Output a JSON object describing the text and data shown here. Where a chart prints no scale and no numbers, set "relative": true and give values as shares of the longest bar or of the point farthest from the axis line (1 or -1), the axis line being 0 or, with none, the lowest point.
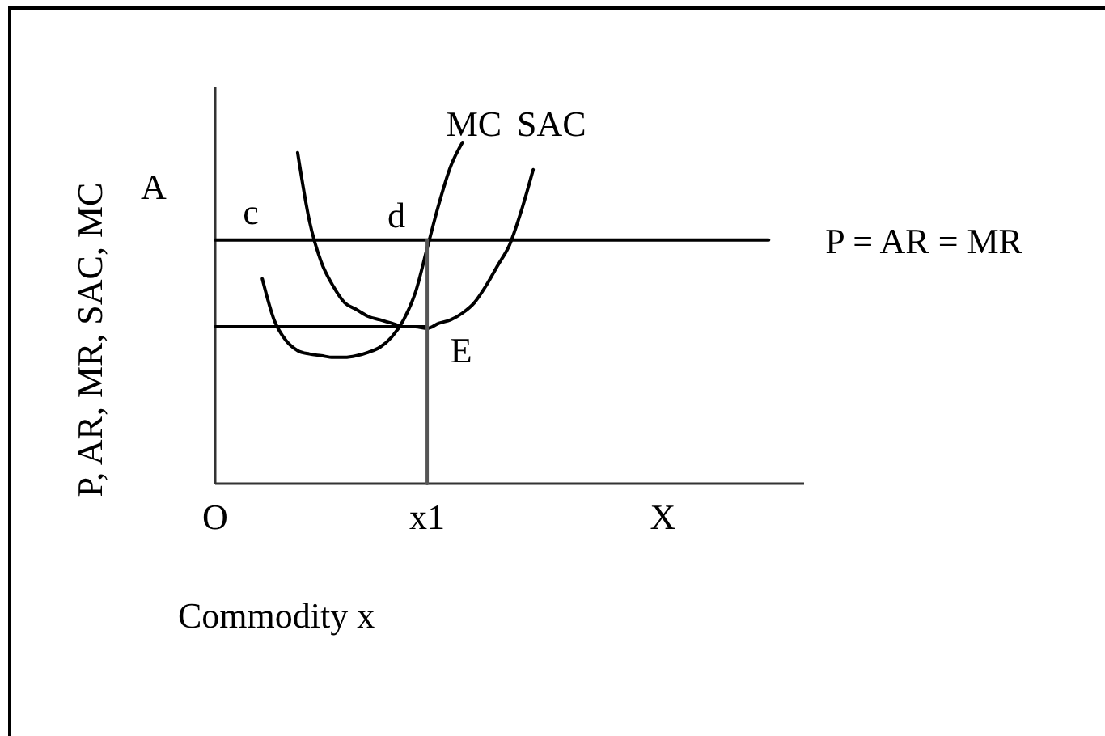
{
  "chart_data": {
    "type": "line",
    "relative": true,
    "xlabel": "Commodity x",
    "ylabel": "P, AR, MR, SAC, MC",
    "categories": [
      "O",
      null,
      null,
      null,
      null,
      null,
      null,
      null,
      null,
      null,
      null,
      null,
      null,
      null,
      null,
      null,
      null,
      null,
      "x1",
      null,
      null,
      null,
      null,
      null,
      null,
      null,
      null,
      null,
      null,
      null,
      null,
      null,
      null,
      null,
      null,
      null,
      null,
      null,
      "X",
      null,
      null,
      null,
      null,
      null,
      null,
      null,
      null,
      null,
      null,
      null,
      null
    ],
    "annotations": [
      "A",
      {
        "text": "c",
        "y": 0.714
      },
      {
        "text": "d",
        "x": "x1",
        "y": 0.714
      },
      {
        "text": "E",
        "x": "x1",
        "y": 0.455
      }
    ],
    "series": [
      {
        "name": "MC",
        "color": "#000000",
        "values": [
          null,
          null,
          null,
          null,
          0.6,
          0.48,
          0.42,
          0.39,
          0.38,
          0.375,
          0.37,
          0.37,
          0.375,
          0.385,
          0.4,
          0.43,
          0.48,
          0.56,
          0.69,
          0.82,
          0.93,
          1,
          null,
          null,
          null,
          null,
          null,
          null,
          null,
          null,
          null,
          null,
          null,
          null,
          null,
          null,
          null,
          null,
          null,
          null,
          null,
          null,
          null,
          null,
          null,
          null,
          null,
          null,
          null,
          null,
          null
        ]
      },
      {
        "name": "SAC",
        "color": "#000000",
        "values": [
          null,
          null,
          null,
          null,
          null,
          null,
          null,
          0.97,
          0.77,
          0.65,
          0.58,
          0.53,
          0.51,
          0.49,
          0.48,
          0.47,
          0.46,
          0.46,
          0.455,
          0.47,
          0.48,
          0.5,
          0.53,
          0.58,
          0.64,
          0.7,
          0.8,
          0.92,
          null,
          null,
          null,
          null,
          null,
          null,
          null,
          null,
          null,
          null,
          null,
          null,
          null,
          null,
          null,
          null,
          null,
          null,
          null,
          null,
          null,
          null,
          null
        ]
      },
      {
        "name": "P = AR = MR",
        "color": "#000000",
        "values": [
          0.714,
          0.714,
          0.714,
          0.714,
          0.714,
          0.714,
          0.714,
          0.714,
          0.714,
          0.714,
          0.714,
          0.714,
          0.714,
          0.714,
          0.714,
          0.714,
          0.714,
          0.714,
          0.714,
          0.714,
          0.714,
          0.714,
          0.714,
          0.714,
          0.714,
          0.714,
          0.714,
          0.714,
          0.714,
          0.714,
          0.714,
          0.714,
          0.714,
          0.714,
          0.714,
          0.714,
          0.714,
          0.714,
          0.714,
          0.714,
          0.714,
          0.714,
          0.714,
          0.714,
          0.714,
          0.714,
          0.714,
          0.714,
          null,
          null,
          null
        ]
      },
      {
        "color": "#000000",
        "values": [
          0.46,
          0.46,
          0.46,
          0.46,
          0.46,
          0.46,
          0.46,
          0.46,
          0.46,
          0.46,
          0.46,
          0.46,
          0.46,
          0.46,
          0.46,
          0.46,
          0.46,
          0.46,
          0.46,
          null,
          null,
          null,
          null,
          null,
          null,
          null,
          null,
          null,
          null,
          null,
          null,
          null,
          null,
          null,
          null,
          null,
          null,
          null,
          null,
          null,
          null,
          null,
          null,
          null,
          null,
          null,
          null,
          null,
          null,
          null,
          null
        ]
      },
      {
        "color": "#555555",
        "x": [
          "x1",
          "x1"
        ],
        "values": [
          0.714,
          0
        ]
      }
    ]
  }
}
